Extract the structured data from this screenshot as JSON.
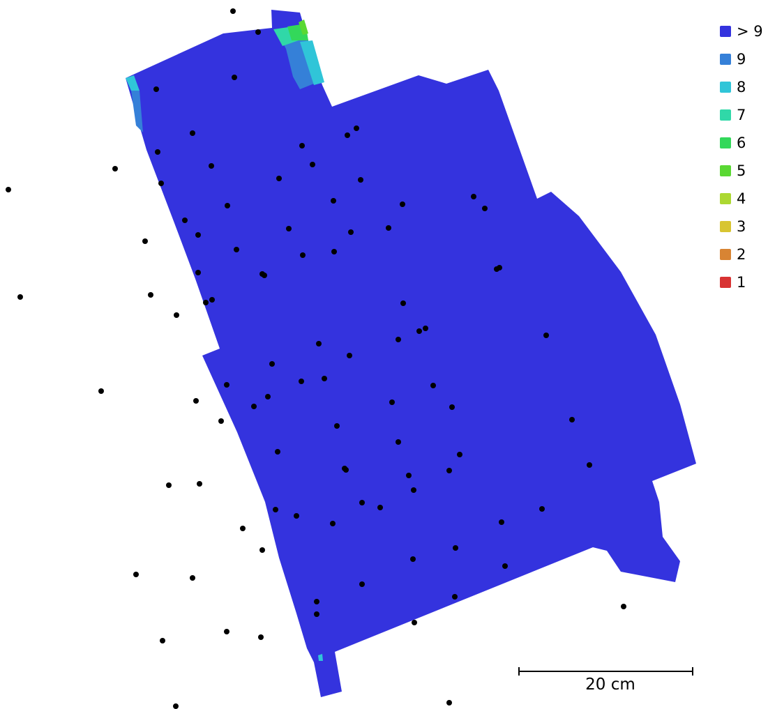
{
  "map": {
    "colors": {
      "very_high": "#3433de",
      "mid_blue": "#3580d8",
      "cyan": "#30c5d8",
      "teal": "#30d8a8",
      "green": "#33d85a",
      "lime": "#5ad833",
      "camera_point": "#000000"
    },
    "camera_points_shown": true
  },
  "legend": {
    "items": [
      {
        "label": "> 9",
        "color": "#3433de"
      },
      {
        "label": "9",
        "color": "#3580d8"
      },
      {
        "label": "8",
        "color": "#30c5d8"
      },
      {
        "label": "7",
        "color": "#30d8a8"
      },
      {
        "label": "6",
        "color": "#33d85a"
      },
      {
        "label": "5",
        "color": "#5ad833"
      },
      {
        "label": "4",
        "color": "#acd832"
      },
      {
        "label": "3",
        "color": "#d8c532"
      },
      {
        "label": "2",
        "color": "#d88433"
      },
      {
        "label": "1",
        "color": "#d83333"
      }
    ]
  },
  "scale_bar": {
    "label": "20 cm"
  }
}
